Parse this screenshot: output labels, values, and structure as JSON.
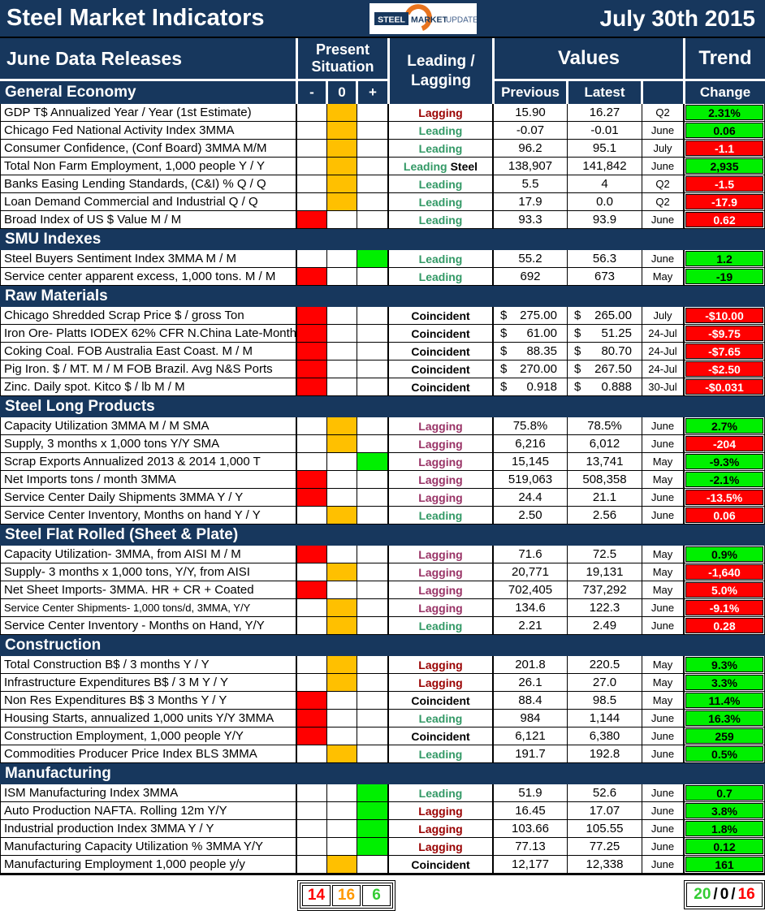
{
  "title_bar": {
    "title": "Steel Market Indicators",
    "date": "July 30th 2015",
    "logo": {
      "steel": "STEEL",
      "market": "MARKET",
      "update": "UPDATE"
    }
  },
  "columns": {
    "releases": "June Data Releases",
    "present_situation": "Present Situation",
    "minus": "-",
    "zero": "0",
    "plus": "+",
    "leading_lagging": "Leading / Lagging",
    "values": "Values",
    "previous": "Previous",
    "latest": "Latest",
    "trend": "Trend",
    "change": "Change"
  },
  "colors": {
    "navy": "#17375D",
    "sit_red": "#FF0000",
    "sit_orange": "#FFC000",
    "sit_green": "#00F000",
    "trend_green_bg": "#00F000",
    "trend_red_bg": "#FF0000",
    "leading": "#339966",
    "lagging_red": "#990000",
    "lagging_purple": "#993366",
    "coincident": "#000000",
    "count_red": "#FF0000",
    "count_orange": "#FF9900",
    "count_green": "#33CC33",
    "neutral": "#000000"
  },
  "sections": [
    {
      "name": "General Economy",
      "rows": [
        {
          "label": "GDP T$ Annualized Year / Year (1st Estimate)",
          "situation": "zero",
          "type": "Lagging",
          "type_style": "lagging_red",
          "prev": "15.90",
          "latest": "16.27",
          "period": "Q2",
          "change": "2.31%",
          "change_color": "green"
        },
        {
          "label": "Chicago Fed National Activity Index 3MMA",
          "situation": "zero",
          "type": "Leading",
          "type_style": "leading",
          "prev": "-0.07",
          "latest": "-0.01",
          "period": "June",
          "change": "0.06",
          "change_color": "green"
        },
        {
          "label": "Consumer Confidence, (Conf Board) 3MMA M/M",
          "situation": "zero",
          "type": "Leading",
          "type_style": "leading",
          "prev": "96.2",
          "latest": "95.1",
          "period": "July",
          "change": "-1.1",
          "change_color": "red"
        },
        {
          "label": "Total Non Farm Employment, 1,000 people Y / Y",
          "situation": "zero",
          "type": "Leading",
          "type_style": "leading",
          "type_suffix": "Steel",
          "prev": "138,907",
          "latest": "141,842",
          "period": "June",
          "change": "2,935",
          "change_color": "green"
        },
        {
          "label": "Banks Easing Lending Standards, (C&I) % Q / Q",
          "situation": "zero",
          "type": "Leading",
          "type_style": "leading",
          "prev": "5.5",
          "latest": "4",
          "period": "Q2",
          "change": "-1.5",
          "change_color": "red"
        },
        {
          "label": "Loan Demand Commercial and Industrial Q / Q",
          "situation": "zero",
          "type": "Leading",
          "type_style": "leading",
          "prev": "17.9",
          "latest": "0.0",
          "period": "Q2",
          "change": "-17.9",
          "change_color": "red"
        },
        {
          "label": "Broad Index of US $ Value M / M",
          "situation": "minus",
          "type": "Leading",
          "type_style": "leading",
          "prev": "93.3",
          "latest": "93.9",
          "period": "June",
          "change": "0.62",
          "change_color": "red"
        }
      ]
    },
    {
      "name": "SMU Indexes",
      "rows": [
        {
          "label": "Steel Buyers Sentiment Index 3MMA M / M",
          "situation": "plus",
          "type": "Leading",
          "type_style": "leading",
          "prev": "55.2",
          "latest": "56.3",
          "period": "June",
          "change": "1.2",
          "change_color": "green"
        },
        {
          "label": "Service center apparent excess, 1,000 tons. M / M",
          "situation": "minus",
          "type": "Leading",
          "type_style": "leading",
          "prev": "692",
          "latest": "673",
          "period": "May",
          "change": "-19",
          "change_color": "green"
        }
      ]
    },
    {
      "name": "Raw Materials",
      "rows": [
        {
          "label": "Chicago Shredded Scrap Price $ / gross Ton",
          "situation": "minus",
          "type": "Coincident",
          "type_style": "coincident",
          "prev": "275.00",
          "latest": "265.00",
          "currency": true,
          "period": "July",
          "change": "-$10.00",
          "change_color": "red"
        },
        {
          "label": "Iron Ore- Platts IODEX 62% CFR N.China Late-Month",
          "situation": "minus",
          "type": "Coincident",
          "type_style": "coincident",
          "prev": "61.00",
          "latest": "51.25",
          "currency": true,
          "period": "24-Jul",
          "change": "-$9.75",
          "change_color": "red"
        },
        {
          "label": "Coking Coal. FOB Australia East Coast. M / M",
          "situation": "minus",
          "type": "Coincident",
          "type_style": "coincident",
          "prev": "88.35",
          "latest": "80.70",
          "currency": true,
          "period": "24-Jul",
          "change": "-$7.65",
          "change_color": "red"
        },
        {
          "label": "Pig Iron. $ / MT. M / M FOB Brazil. Avg N&S Ports",
          "situation": "minus",
          "type": "Coincident",
          "type_style": "coincident",
          "prev": "270.00",
          "latest": "267.50",
          "currency": true,
          "period": "24-Jul",
          "change": "-$2.50",
          "change_color": "red"
        },
        {
          "label": "Zinc. Daily spot. Kitco $ / lb M / M",
          "situation": "minus",
          "type": "Coincident",
          "type_style": "coincident",
          "prev": "0.918",
          "latest": "0.888",
          "currency": true,
          "period": "30-Jul",
          "change": "-$0.031",
          "change_color": "red"
        }
      ]
    },
    {
      "name": "Steel Long Products",
      "rows": [
        {
          "label": "Capacity Utilization 3MMA  M / M SMA",
          "situation": "zero",
          "type": "Lagging",
          "type_style": "lagging_purple",
          "prev": "75.8%",
          "latest": "78.5%",
          "period": "June",
          "change": "2.7%",
          "change_color": "green"
        },
        {
          "label": "Supply, 3 months x 1,000 tons Y/Y SMA",
          "situation": "zero",
          "type": "Lagging",
          "type_style": "lagging_purple",
          "prev": "6,216",
          "latest": "6,012",
          "period": "June",
          "change": "-204",
          "change_color": "red"
        },
        {
          "label": "Scrap Exports Annualized 2013 & 2014 1,000 T",
          "situation": "plus",
          "type": "Lagging",
          "type_style": "lagging_purple",
          "prev": "15,145",
          "latest": "13,741",
          "period": "May",
          "change": "-9.3%",
          "change_color": "green"
        },
        {
          "label": "Net Imports tons / month 3MMA",
          "situation": "minus",
          "type": "Lagging",
          "type_style": "lagging_purple",
          "prev": "519,063",
          "latest": "508,358",
          "period": "May",
          "change": "-2.1%",
          "change_color": "green"
        },
        {
          "label": "Service Center Daily Shipments 3MMA Y / Y",
          "situation": "minus",
          "type": "Lagging",
          "type_style": "lagging_purple",
          "prev": "24.4",
          "latest": "21.1",
          "period": "June",
          "change": "-13.5%",
          "change_color": "red"
        },
        {
          "label": "Service Center Inventory, Months on hand Y / Y",
          "situation": "zero",
          "type": "Leading",
          "type_style": "leading",
          "prev": "2.50",
          "latest": "2.56",
          "period": "June",
          "change": "0.06",
          "change_color": "red"
        }
      ]
    },
    {
      "name": "Steel Flat Rolled (Sheet & Plate)",
      "rows": [
        {
          "label": "Capacity Utilization- 3MMA, from AISI M / M",
          "situation": "minus",
          "type": "Lagging",
          "type_style": "lagging_purple",
          "prev": "71.6",
          "latest": "72.5",
          "period": "May",
          "change": "0.9%",
          "change_color": "green"
        },
        {
          "label": "Supply- 3 months x 1,000 tons, Y/Y, from AISI",
          "situation": "zero",
          "type": "Lagging",
          "type_style": "lagging_purple",
          "prev": "20,771",
          "latest": "19,131",
          "period": "May",
          "change": "-1,640",
          "change_color": "red"
        },
        {
          "label": "Net Sheet Imports- 3MMA. HR + CR + Coated",
          "situation": "minus",
          "type": "Lagging",
          "type_style": "lagging_purple",
          "prev": "702,405",
          "latest": "737,292",
          "period": "May",
          "change": "5.0%",
          "change_color": "red"
        },
        {
          "label": "Service Center Shipments- 1,000 tons/d, 3MMA, Y/Y",
          "small": true,
          "situation": "zero",
          "type": "Lagging",
          "type_style": "lagging_purple",
          "prev": "134.6",
          "latest": "122.3",
          "period": "June",
          "change": "-9.1%",
          "change_color": "red"
        },
        {
          "label": "Service Center Inventory - Months on Hand, Y/Y",
          "situation": "zero",
          "type": "Leading",
          "type_style": "leading",
          "prev": "2.21",
          "latest": "2.49",
          "period": "June",
          "change": "0.28",
          "change_color": "red"
        }
      ]
    },
    {
      "name": "Construction",
      "rows": [
        {
          "label": "Total Construction B$ /  3 months Y / Y",
          "situation": "zero",
          "type": "Lagging",
          "type_style": "lagging_red",
          "prev": "201.8",
          "latest": "220.5",
          "period": "May",
          "change": "9.3%",
          "change_color": "green"
        },
        {
          "label": "Infrastructure Expenditures B$ / 3 M    Y / Y",
          "situation": "zero",
          "type": "Lagging",
          "type_style": "lagging_red",
          "prev": "26.1",
          "latest": "27.0",
          "period": "May",
          "change": "3.3%",
          "change_color": "green"
        },
        {
          "label": "Non Res Expenditures B$  3 Months   Y / Y",
          "situation": "minus",
          "type": "Coincident",
          "type_style": "coincident",
          "prev": "88.4",
          "latest": "98.5",
          "period": "May",
          "change": "11.4%",
          "change_color": "green"
        },
        {
          "label": "Housing Starts, annualized 1,000 units Y/Y 3MMA",
          "situation": "minus",
          "type": "Leading",
          "type_style": "leading",
          "prev": "984",
          "latest": "1,144",
          "period": "June",
          "change": "16.3%",
          "change_color": "green"
        },
        {
          "label": "Construction Employment, 1,000 people Y/Y",
          "situation": "minus",
          "type": "Coincident",
          "type_style": "coincident",
          "prev": "6,121",
          "latest": "6,380",
          "period": "June",
          "change": "259",
          "change_color": "green"
        },
        {
          "label": "Commodities Producer Price Index BLS 3MMA",
          "situation": "zero",
          "type": "Leading",
          "type_style": "leading",
          "prev": "191.7",
          "latest": "192.8",
          "period": "June",
          "change": "0.5%",
          "change_color": "green"
        }
      ]
    },
    {
      "name": "Manufacturing",
      "rows": [
        {
          "label": "ISM Manufacturing Index 3MMA",
          "situation": "plus",
          "type": "Leading",
          "type_style": "leading",
          "prev": "51.9",
          "latest": "52.6",
          "period": "June",
          "change": "0.7",
          "change_color": "green"
        },
        {
          "label": "Auto Production NAFTA. Rolling 12m Y/Y",
          "situation": "plus",
          "type": "Lagging",
          "type_style": "lagging_red",
          "prev": "16.45",
          "latest": "17.07",
          "period": "June",
          "change": "3.8%",
          "change_color": "green"
        },
        {
          "label": "Industrial production Index 3MMA Y / Y",
          "situation": "plus",
          "type": "Lagging",
          "type_style": "lagging_red",
          "prev": "103.66",
          "latest": "105.55",
          "period": "June",
          "change": "1.8%",
          "change_color": "green"
        },
        {
          "label": "Manufacturing Capacity Utilization % 3MMA Y/Y",
          "situation": "plus",
          "type": "Lagging",
          "type_style": "lagging_red",
          "prev": "77.13",
          "latest": "77.25",
          "period": "June",
          "change": "0.12",
          "change_color": "green"
        },
        {
          "label": "Manufacturing Employment 1,000 people y/y",
          "situation": "zero",
          "type": "Coincident",
          "type_style": "coincident",
          "prev": "12,177",
          "latest": "12,338",
          "period": "June",
          "change": "161",
          "change_color": "green"
        }
      ]
    }
  ],
  "summary": {
    "situation_counts": [
      {
        "value": "14",
        "color": "count_red"
      },
      {
        "value": "16",
        "color": "count_orange"
      },
      {
        "value": "6",
        "color": "count_green"
      }
    ],
    "trend": {
      "up": "20",
      "neutral": "0",
      "down": "16",
      "sep": "/"
    }
  }
}
